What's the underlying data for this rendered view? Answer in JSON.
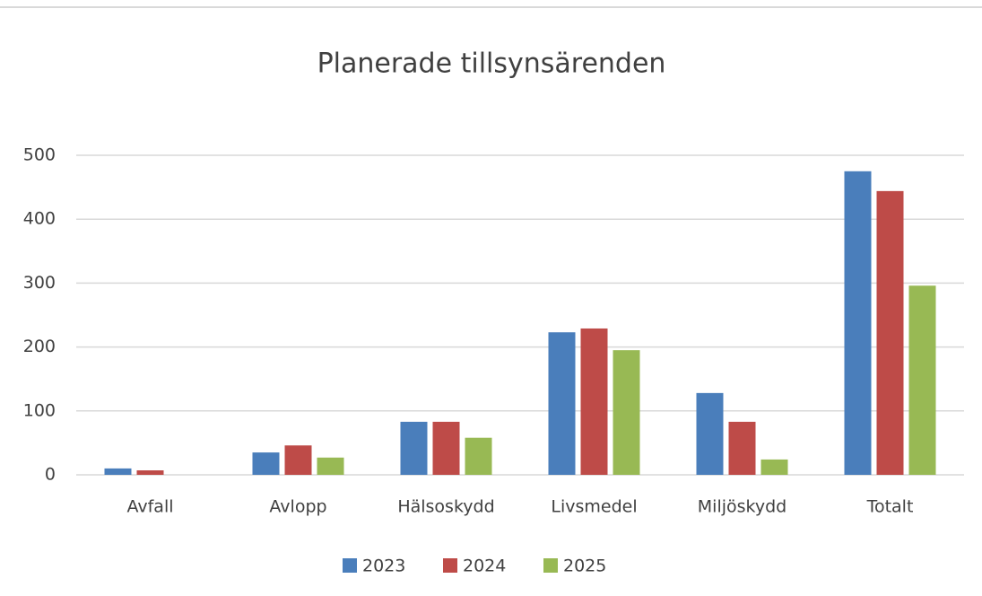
{
  "chart_data": {
    "type": "bar",
    "title": "Planerade tillsynsärenden",
    "categories": [
      "Avfall",
      "Avlopp",
      "Hälsoskydd",
      "Livsmedel",
      "Miljöskydd",
      "Totalt"
    ],
    "series": [
      {
        "name": "2023",
        "color": "#4a7ebb",
        "values": [
          10,
          35,
          83,
          223,
          128,
          475
        ]
      },
      {
        "name": "2024",
        "color": "#be4b48",
        "values": [
          7,
          46,
          83,
          229,
          83,
          444
        ]
      },
      {
        "name": "2025",
        "color": "#98b954",
        "values": [
          0,
          27,
          58,
          195,
          24,
          296
        ]
      }
    ],
    "ylim": [
      0,
      500
    ],
    "yticks": [
      0,
      100,
      200,
      300,
      400,
      500
    ],
    "grid": true,
    "legend": "bottom"
  }
}
